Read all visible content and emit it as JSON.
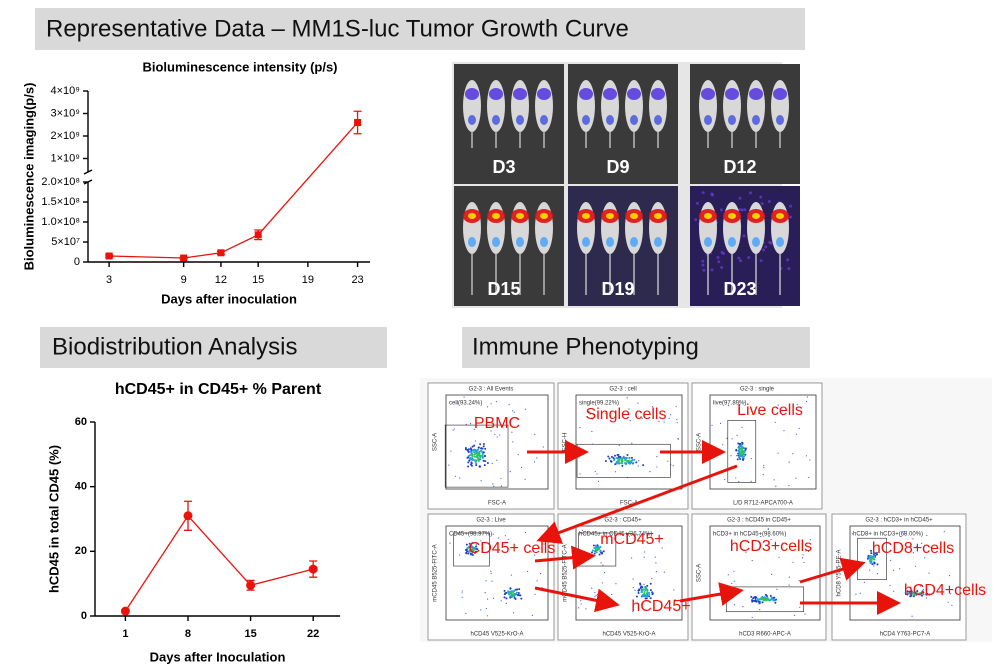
{
  "sections": [
    "Representative Data – MM1S-luc Tumor Growth Curve",
    "Biodistribution Analysis",
    "Immune Phenotyping"
  ],
  "chart_data": [
    {
      "type": "line",
      "title": "Bioluminescence intensity (p/s)",
      "x_label": "Days after inoculation",
      "y_label": "Bioluminescence imaging(p/s)",
      "x": [
        3,
        9,
        12,
        15,
        23
      ],
      "xlim": [
        1.3,
        24
      ],
      "xticks": [
        3,
        9,
        12,
        15,
        19,
        23
      ],
      "series": [
        {
          "color": "#e8140c",
          "marker": "square",
          "values": [
            15000000,
            10000000,
            23000000,
            68000000,
            2600000000
          ],
          "errors": [
            3000000,
            2000000,
            4000000,
            12000000,
            500000000
          ]
        }
      ],
      "ylim": [
        0,
        4000000000
      ],
      "y_break": [
        200000000,
        400000000
      ],
      "yticks": [
        0,
        {
          "value": 50000000,
          "label": "5×10⁷"
        },
        {
          "value": 100000000,
          "label": "1.0×10⁸"
        },
        {
          "value": 150000000,
          "label": "1.5×10⁸"
        },
        {
          "value": 200000000,
          "label": "2.0×10⁸"
        },
        {
          "value": 1000000000,
          "label": "1×10⁹"
        },
        {
          "value": 2000000000,
          "label": "2×10⁹"
        },
        {
          "value": 3000000000,
          "label": "3×10⁹"
        },
        {
          "value": 4000000000,
          "label": "4×10⁹"
        }
      ]
    },
    {
      "type": "line",
      "title": "hCD45+ in CD45+ % Parent",
      "x_label": "Days after Inoculation",
      "y_label": "hCD45 in total CD45 (%)",
      "x": [
        1,
        8,
        15,
        22
      ],
      "xlim": [
        -2.4,
        25
      ],
      "xticks": [
        1,
        8,
        15,
        22
      ],
      "series": [
        {
          "color": "#e8140c",
          "marker": "circle",
          "values": [
            1.5,
            31,
            9.5,
            14.5
          ],
          "errors": [
            0.5,
            4.5,
            1.5,
            2.5
          ]
        }
      ],
      "ylim": [
        0,
        60
      ],
      "yticks": [
        0,
        20,
        40,
        60
      ]
    }
  ],
  "imaging": {
    "days": [
      "D3",
      "D9",
      "D12",
      "D15",
      "D19",
      "D23"
    ]
  },
  "flow": {
    "panels": [
      {
        "title": "G2-3 : All Events",
        "x_axis": "FSC-A",
        "y_axis": "SSC-A",
        "gate": "cell(93.24%)"
      },
      {
        "title": "G2-3 : cell",
        "x_axis": "FSC-A",
        "y_axis": "FSC-H",
        "gate": "single(99.22%)"
      },
      {
        "title": "G2-3 : single",
        "x_axis": "L/D R712-APCA700-A",
        "y_axis": "SSC-A",
        "gate": "live(97.89%)"
      },
      {
        "title": "G2-3 : Live",
        "x_axis": "hCD45 V525-KrO-A",
        "y_axis": "mCD45 B525-FITC-A",
        "gate": "CD45+(98.97%)"
      },
      {
        "title": "G2-3 : CD45+",
        "x_axis": "hCD45 V525-KrO-A",
        "y_axis": "mCD45 B525-FITC-A",
        "gate": "hCD45+ in CD45+(36.74%)"
      },
      {
        "title": "G2-3 : hCD45 in CD45+",
        "x_axis": "hCD3 R660-APC-A",
        "y_axis": "SSC-A",
        "gate": "hCD3+ in hCD45+(98.60%)"
      },
      {
        "title": "G2-3 : hCD3+ in hCD45+",
        "x_axis": "hCD4 Y763-PC7-A",
        "y_axis": "hCD8 Y585-PE-A",
        "gate": "hCD8+ in hCD3+(68.00%)"
      }
    ],
    "labels": [
      "PBMC",
      "Single cells",
      "Live cells",
      "CD45+ cells",
      "mCD45+",
      "hCD45+",
      "hCD3+cells",
      "hCD8+cells",
      "hCD4+cells"
    ]
  }
}
